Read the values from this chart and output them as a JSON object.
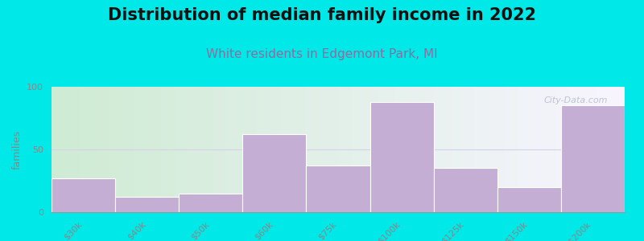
{
  "title": "Distribution of median family income in 2022",
  "subtitle": "White residents in Edgemont Park, MI",
  "categories": [
    "$30k",
    "$40k",
    "$50k",
    "$60k",
    "$75k",
    "$100k",
    "$125k",
    "$150k",
    ">$200k"
  ],
  "values": [
    27,
    12,
    15,
    62,
    37,
    88,
    35,
    20,
    85
  ],
  "bar_color": "#c4aed4",
  "bar_edge_color": "#ffffff",
  "background_outer": "#00e8e8",
  "ylabel": "families",
  "ylim": [
    0,
    100
  ],
  "yticks": [
    0,
    50,
    100
  ],
  "title_fontsize": 15,
  "subtitle_fontsize": 11,
  "ylabel_fontsize": 9,
  "tick_fontsize": 8,
  "watermark": "City-Data.com",
  "subtitle_color": "#8870a0",
  "title_color": "#111111",
  "tick_color": "#888888"
}
